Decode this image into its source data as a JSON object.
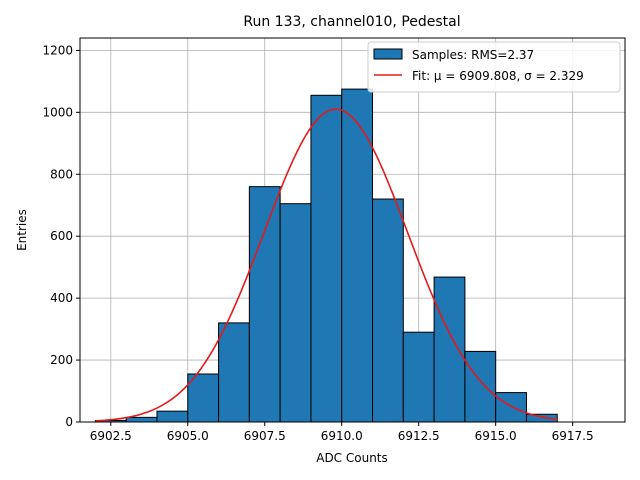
{
  "chart_data": {
    "type": "bar",
    "title": "Run 133, channel010, Pedestal",
    "xlabel": "ADC Counts",
    "ylabel": "Entries",
    "xlim": [
      6901.5,
      6919.2
    ],
    "ylim": [
      0,
      1240
    ],
    "xticks": [
      6902.5,
      6905.0,
      6907.5,
      6910.0,
      6912.5,
      6915.0,
      6917.5
    ],
    "xtick_labels": [
      "6902.5",
      "6905.0",
      "6907.5",
      "6910.0",
      "6912.5",
      "6915.0",
      "6917.5"
    ],
    "yticks": [
      0,
      200,
      400,
      600,
      800,
      1000,
      1200
    ],
    "ytick_labels": [
      "0",
      "200",
      "400",
      "600",
      "800",
      "1000",
      "1200"
    ],
    "grid": true,
    "legend_position": "top-right",
    "bin_edges": [
      6902,
      6903,
      6904,
      6905,
      6906,
      6907,
      6908,
      6909,
      6910,
      6911,
      6912,
      6913,
      6914,
      6915,
      6916,
      6917
    ],
    "series": [
      {
        "name": "Samples: RMS=2.37",
        "kind": "histogram",
        "color": "#1f77b4",
        "values": [
          5,
          15,
          35,
          155,
          320,
          760,
          705,
          1055,
          1075,
          720,
          290,
          468,
          228,
          95,
          25
        ]
      },
      {
        "name": "Fit: μ = 6909.808, σ = 2.329",
        "kind": "gaussian-fit",
        "color": "#e41a1c",
        "mu": 6909.808,
        "sigma": 2.329,
        "amplitude": 1010,
        "x_range": [
          6902,
          6917
        ]
      }
    ]
  }
}
